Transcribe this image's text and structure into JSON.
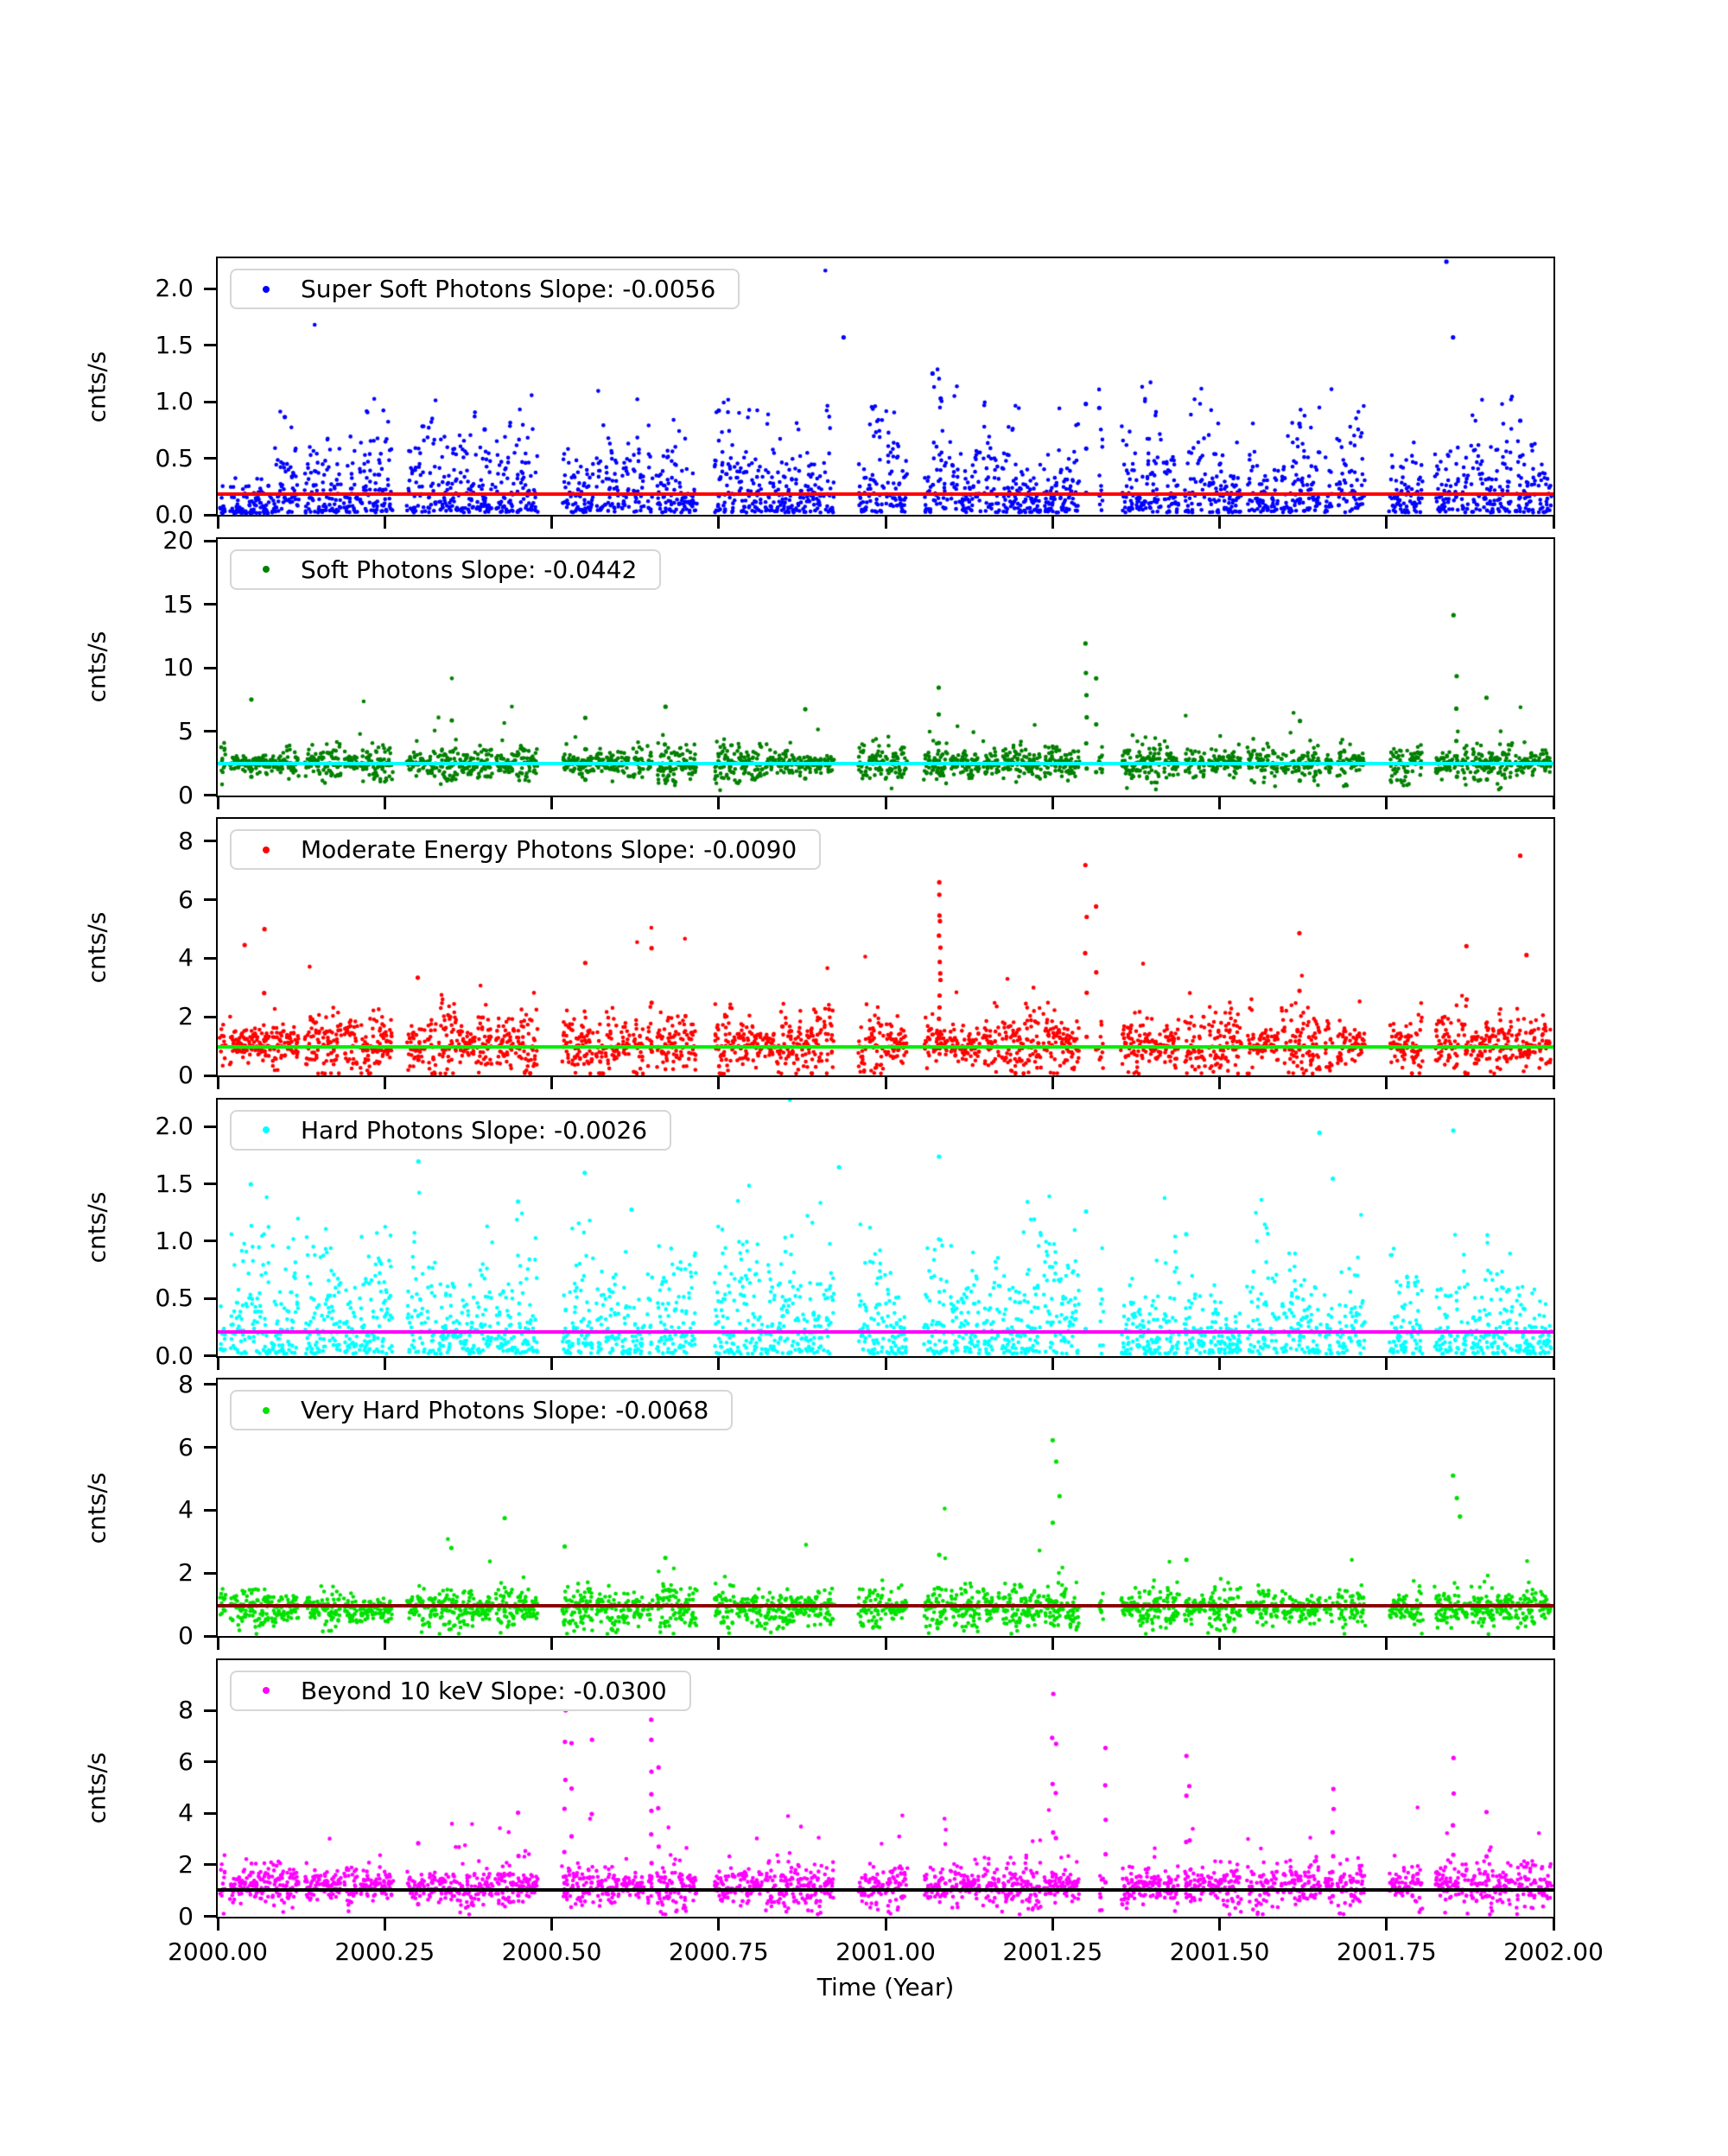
{
  "figure": {
    "background": "#ffffff"
  },
  "chart_data": {
    "type": "scatter",
    "title": "",
    "xlabel": "Time (Year)",
    "ylabel": "cnts/s",
    "xlim": [
      2000.0,
      2002.0
    ],
    "grid": false,
    "legend_position": "upper left",
    "xticks": {
      "labels": [
        "2000.00",
        "2000.25",
        "2000.50",
        "2000.75",
        "2001.00",
        "2001.25",
        "2001.50",
        "2001.75",
        "2002.00"
      ],
      "values": [
        2000.0,
        2000.25,
        2000.5,
        2000.75,
        2001.0,
        2001.25,
        2001.5,
        2001.75,
        2002.0
      ]
    },
    "panels": [
      {
        "name": "super-soft",
        "legend_label": "Super Soft Photons Slope: -0.0056",
        "slope": -0.0056,
        "marker_color": "#0000ff",
        "ylim": [
          0,
          2.27
        ],
        "yticks": {
          "labels": [
            "0.0",
            "0.5",
            "1.0",
            "1.5",
            "2.0"
          ],
          "values": [
            0,
            0.5,
            1.0,
            1.5,
            2.0
          ]
        },
        "trend": {
          "color": "#ff0000",
          "start": 0.19,
          "end": 0.18
        },
        "distribution": {
          "type": "skew",
          "base": 0.02,
          "scale": 0.85,
          "floor": 0.015,
          "early_low": true
        },
        "spikes": [
          [
            2000.1,
            0.88,
            2
          ],
          [
            2000.4,
            0.78,
            2
          ],
          [
            2000.75,
            0.95,
            2
          ],
          [
            2000.937,
            1.57,
            1
          ],
          [
            2001.07,
            1.25,
            1
          ],
          [
            2001.083,
            1.03,
            1
          ],
          [
            2001.3,
            1.0,
            3
          ],
          [
            2001.32,
            0.96,
            2
          ],
          [
            2001.62,
            0.82,
            2
          ],
          [
            2001.84,
            2.24,
            1
          ],
          [
            2001.85,
            1.57,
            1
          ],
          [
            2001.95,
            0.86,
            3
          ]
        ]
      },
      {
        "name": "soft",
        "legend_label": "Soft Photons Slope: -0.0442",
        "slope": -0.0442,
        "marker_color": "#008000",
        "ylim": [
          0,
          20.2
        ],
        "yticks": {
          "labels": [
            "0",
            "5",
            "10",
            "15",
            "20"
          ],
          "values": [
            0,
            5,
            10,
            15,
            20
          ]
        },
        "trend": {
          "color": "#00ffff",
          "start": 2.56,
          "end": 2.47
        },
        "distribution": {
          "type": "sym",
          "center": 2.55,
          "spread": 1.15,
          "floor": 0.15
        },
        "spikes": [
          [
            2000.05,
            7.9,
            2
          ],
          [
            2000.35,
            6.2,
            2
          ],
          [
            2000.55,
            6.4,
            3
          ],
          [
            2000.67,
            7.2,
            3
          ],
          [
            2000.88,
            7.0,
            2
          ],
          [
            2001.08,
            8.9,
            4
          ],
          [
            2001.3,
            12.0,
            6
          ],
          [
            2001.315,
            9.6,
            3
          ],
          [
            2001.62,
            6.0,
            2
          ],
          [
            2001.85,
            14.2,
            1
          ],
          [
            2001.855,
            9.7,
            4
          ],
          [
            2001.9,
            7.8,
            2
          ]
        ]
      },
      {
        "name": "moderate-energy",
        "legend_label": "Moderate Energy Photons Slope: -0.0090",
        "slope": -0.009,
        "marker_color": "#ff0000",
        "ylim": [
          0,
          8.76
        ],
        "yticks": {
          "labels": [
            "0",
            "2",
            "4",
            "6",
            "8"
          ],
          "values": [
            0,
            2,
            4,
            6,
            8
          ]
        },
        "trend": {
          "color": "#00ee00",
          "start": 0.97,
          "end": 0.95
        },
        "distribution": {
          "type": "sym",
          "center": 1.05,
          "spread": 0.88,
          "floor": 0.06
        },
        "spikes": [
          [
            2000.04,
            4.5,
            2
          ],
          [
            2000.07,
            5.1,
            3
          ],
          [
            2000.3,
            3.4,
            2
          ],
          [
            2000.55,
            3.9,
            2
          ],
          [
            2000.65,
            4.4,
            3
          ],
          [
            2001.081,
            6.6,
            14
          ],
          [
            2001.3,
            7.2,
            5
          ],
          [
            2001.315,
            5.9,
            3
          ],
          [
            2001.62,
            4.9,
            3
          ],
          [
            2001.87,
            4.6,
            3
          ],
          [
            2001.95,
            7.5,
            1
          ],
          [
            2001.96,
            4.2,
            2
          ]
        ]
      },
      {
        "name": "hard",
        "legend_label": "Hard Photons Slope: -0.0026",
        "slope": -0.0026,
        "marker_color": "#00ffff",
        "ylim": [
          0,
          2.24
        ],
        "yticks": {
          "labels": [
            "0.0",
            "0.5",
            "1.0",
            "1.5",
            "2.0"
          ],
          "values": [
            0,
            0.5,
            1.0,
            1.5,
            2.0
          ]
        },
        "trend": {
          "color": "#ff00ff",
          "start": 0.21,
          "end": 0.2
        },
        "distribution": {
          "type": "skew",
          "base": 0.02,
          "scale": 1.0,
          "floor": 0.015
        },
        "spikes": [
          [
            2000.05,
            1.5,
            1
          ],
          [
            2000.3,
            1.7,
            1
          ],
          [
            2000.45,
            1.35,
            1
          ],
          [
            2000.55,
            1.6,
            1
          ],
          [
            2000.62,
            1.28,
            1
          ],
          [
            2000.93,
            1.65,
            1
          ],
          [
            2001.08,
            1.75,
            2
          ],
          [
            2001.3,
            1.3,
            2
          ],
          [
            2001.45,
            1.1,
            2
          ],
          [
            2001.65,
            1.95,
            1
          ],
          [
            2001.67,
            1.55,
            1
          ],
          [
            2001.85,
            1.97,
            1
          ]
        ]
      },
      {
        "name": "very-hard",
        "legend_label": "Very Hard Photons Slope: -0.0068",
        "slope": -0.0068,
        "marker_color": "#00e100",
        "ylim": [
          0,
          8.16
        ],
        "yticks": {
          "labels": [
            "0",
            "2",
            "4",
            "6",
            "8"
          ],
          "values": [
            0,
            2,
            4,
            6,
            8
          ]
        },
        "trend": {
          "color": "#8b0000",
          "start": 0.96,
          "end": 0.94
        },
        "distribution": {
          "type": "sym",
          "center": 0.88,
          "spread": 0.55,
          "floor": 0.06
        },
        "spikes": [
          [
            2000.35,
            2.8,
            1
          ],
          [
            2000.43,
            3.9,
            2
          ],
          [
            2000.52,
            2.9,
            2
          ],
          [
            2000.67,
            2.5,
            2
          ],
          [
            2001.08,
            2.6,
            3
          ],
          [
            2001.25,
            6.35,
            3
          ],
          [
            2001.255,
            5.6,
            2
          ],
          [
            2001.26,
            4.6,
            2
          ],
          [
            2001.45,
            2.5,
            2
          ],
          [
            2001.85,
            5.2,
            2
          ],
          [
            2001.855,
            4.4,
            2
          ],
          [
            2001.86,
            3.8,
            1
          ]
        ]
      },
      {
        "name": "beyond-10kev",
        "legend_label": "Beyond 10 keV Slope: -0.0300",
        "slope": -0.03,
        "marker_color": "#ff00ff",
        "ylim": [
          0,
          9.97
        ],
        "yticks": {
          "labels": [
            "0",
            "2",
            "4",
            "6",
            "8"
          ],
          "values": [
            0,
            2,
            4,
            6,
            8
          ]
        },
        "trend": {
          "color": "#000000",
          "start": 1.04,
          "end": 0.98
        },
        "distribution": {
          "type": "sym",
          "center": 1.2,
          "spread": 0.7,
          "floor": 0.08,
          "tail": 0.04
        },
        "spikes": [
          [
            2000.3,
            2.9,
            2
          ],
          [
            2000.45,
            4.2,
            3
          ],
          [
            2000.52,
            8.1,
            6
          ],
          [
            2000.53,
            7.0,
            4
          ],
          [
            2000.56,
            6.9,
            3
          ],
          [
            2000.65,
            7.8,
            8
          ],
          [
            2000.66,
            5.9,
            4
          ],
          [
            2001.25,
            8.7,
            5
          ],
          [
            2001.255,
            6.9,
            4
          ],
          [
            2001.33,
            6.8,
            5
          ],
          [
            2001.45,
            6.5,
            4
          ],
          [
            2001.455,
            5.3,
            3
          ],
          [
            2001.67,
            5.0,
            6
          ],
          [
            2001.85,
            6.2,
            5
          ],
          [
            2001.9,
            4.2,
            3
          ]
        ]
      }
    ]
  }
}
